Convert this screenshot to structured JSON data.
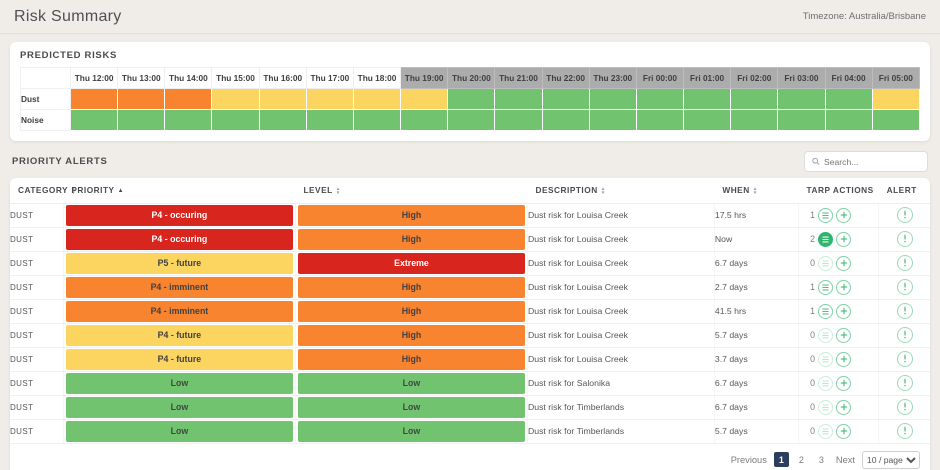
{
  "header": {
    "title": "Risk Summary",
    "timezone": "Timezone: Australia/Brisbane"
  },
  "palette": {
    "red": {
      "bg": "#D8251D",
      "text": "#FFFFFF"
    },
    "orange": {
      "bg": "#F8842F",
      "text": "#414042"
    },
    "yellow": {
      "bg": "#FBD560",
      "text": "#414042"
    },
    "green": {
      "bg": "#71C36F",
      "text": "#3E4A40"
    }
  },
  "predicted_risks": {
    "title": "PREDICTED RISKS",
    "columns": [
      {
        "label": "Thu 12:00",
        "dimmed": false
      },
      {
        "label": "Thu 13:00",
        "dimmed": false
      },
      {
        "label": "Thu 14:00",
        "dimmed": false
      },
      {
        "label": "Thu 15:00",
        "dimmed": false
      },
      {
        "label": "Thu 16:00",
        "dimmed": false
      },
      {
        "label": "Thu 17:00",
        "dimmed": false
      },
      {
        "label": "Thu 18:00",
        "dimmed": false
      },
      {
        "label": "Thu 19:00",
        "dimmed": true
      },
      {
        "label": "Thu 20:00",
        "dimmed": true
      },
      {
        "label": "Thu 21:00",
        "dimmed": true
      },
      {
        "label": "Thu 22:00",
        "dimmed": true
      },
      {
        "label": "Thu 23:00",
        "dimmed": true
      },
      {
        "label": "Fri 00:00",
        "dimmed": true
      },
      {
        "label": "Fri 01:00",
        "dimmed": true
      },
      {
        "label": "Fri 02:00",
        "dimmed": true
      },
      {
        "label": "Fri 03:00",
        "dimmed": true
      },
      {
        "label": "Fri 04:00",
        "dimmed": true
      },
      {
        "label": "Fri 05:00",
        "dimmed": true
      }
    ],
    "rows": [
      {
        "label": "Dust",
        "cells": [
          "orange",
          "orange",
          "orange",
          "yellow",
          "yellow",
          "yellow",
          "yellow",
          "yellow",
          "green",
          "green",
          "green",
          "green",
          "green",
          "green",
          "green",
          "green",
          "green",
          "yellow"
        ]
      },
      {
        "label": "Noise",
        "cells": [
          "green",
          "green",
          "green",
          "green",
          "green",
          "green",
          "green",
          "green",
          "green",
          "green",
          "green",
          "green",
          "green",
          "green",
          "green",
          "green",
          "green",
          "green"
        ]
      }
    ]
  },
  "priority_alerts": {
    "title": "PRIORITY ALERTS",
    "search_placeholder": "Search...",
    "columns": [
      {
        "label": "CATEGORY",
        "sort": "both"
      },
      {
        "label": "PRIORITY",
        "sort": "asc"
      },
      {
        "label": "LEVEL",
        "sort": "both"
      },
      {
        "label": "DESCRIPTION",
        "sort": "both"
      },
      {
        "label": "WHEN",
        "sort": "both"
      },
      {
        "label": "TARP ACTIONS",
        "sort": "none"
      },
      {
        "label": "ALERT",
        "sort": "none"
      }
    ],
    "rows": [
      {
        "category": "DUST",
        "priority": {
          "label": "P4 - occuring",
          "color": "red"
        },
        "level": {
          "label": "High",
          "color": "orange"
        },
        "description": "Dust risk for Louisa Creek",
        "when": "17.5 hrs",
        "tarp": {
          "count": "1",
          "state": "outline"
        }
      },
      {
        "category": "DUST",
        "priority": {
          "label": "P4 - occuring",
          "color": "red"
        },
        "level": {
          "label": "High",
          "color": "orange"
        },
        "description": "Dust risk for Louisa Creek",
        "when": "Now",
        "tarp": {
          "count": "2",
          "state": "filled"
        }
      },
      {
        "category": "DUST",
        "priority": {
          "label": "P5 - future",
          "color": "yellow"
        },
        "level": {
          "label": "Extreme",
          "color": "red"
        },
        "description": "Dust risk for Louisa Creek",
        "when": "6.7 days",
        "tarp": {
          "count": "0",
          "state": "disabled"
        }
      },
      {
        "category": "DUST",
        "priority": {
          "label": "P4 - imminent",
          "color": "orange"
        },
        "level": {
          "label": "High",
          "color": "orange"
        },
        "description": "Dust risk for Louisa Creek",
        "when": "2.7 days",
        "tarp": {
          "count": "1",
          "state": "outline"
        }
      },
      {
        "category": "DUST",
        "priority": {
          "label": "P4 - imminent",
          "color": "orange"
        },
        "level": {
          "label": "High",
          "color": "orange"
        },
        "description": "Dust risk for Louisa Creek",
        "when": "41.5 hrs",
        "tarp": {
          "count": "1",
          "state": "outline"
        }
      },
      {
        "category": "DUST",
        "priority": {
          "label": "P4 - future",
          "color": "yellow"
        },
        "level": {
          "label": "High",
          "color": "orange"
        },
        "description": "Dust risk for Louisa Creek",
        "when": "5.7 days",
        "tarp": {
          "count": "0",
          "state": "disabled"
        }
      },
      {
        "category": "DUST",
        "priority": {
          "label": "P4 - future",
          "color": "yellow"
        },
        "level": {
          "label": "High",
          "color": "orange"
        },
        "description": "Dust risk for Louisa Creek",
        "when": "3.7 days",
        "tarp": {
          "count": "0",
          "state": "disabled"
        }
      },
      {
        "category": "DUST",
        "priority": {
          "label": "Low",
          "color": "green"
        },
        "level": {
          "label": "Low",
          "color": "green"
        },
        "description": "Dust risk for Salonika",
        "when": "6.7 days",
        "tarp": {
          "count": "0",
          "state": "disabled"
        }
      },
      {
        "category": "DUST",
        "priority": {
          "label": "Low",
          "color": "green"
        },
        "level": {
          "label": "Low",
          "color": "green"
        },
        "description": "Dust risk for Timberlands",
        "when": "6.7 days",
        "tarp": {
          "count": "0",
          "state": "disabled"
        }
      },
      {
        "category": "DUST",
        "priority": {
          "label": "Low",
          "color": "green"
        },
        "level": {
          "label": "Low",
          "color": "green"
        },
        "description": "Dust risk for Timberlands",
        "when": "5.7 days",
        "tarp": {
          "count": "0",
          "state": "disabled"
        }
      }
    ],
    "pagination": {
      "previous": "Previous",
      "pages": [
        "1",
        "2",
        "3"
      ],
      "active": "1",
      "next": "Next",
      "page_size": "10 / page"
    }
  },
  "icons": {
    "search": "magnifier-icon",
    "tarp_list": "tarp-list-icon",
    "tarp_add": "plus-icon",
    "alert": "alert-info-icon"
  }
}
